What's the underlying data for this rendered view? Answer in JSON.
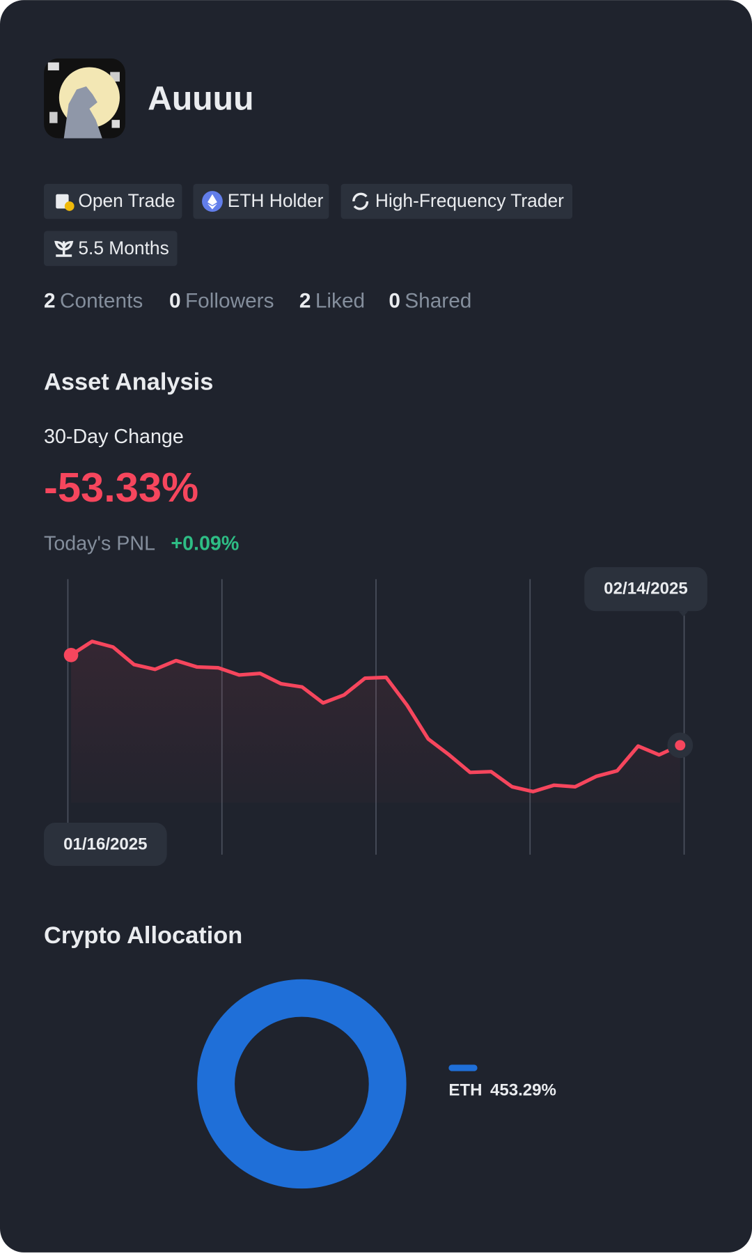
{
  "profile": {
    "name": "Auuuu",
    "badges": [
      "Open Trade",
      "ETH Holder",
      "High-Frequency Trader",
      "5.5 Months"
    ],
    "stats": [
      {
        "value": 2,
        "label": "Contents"
      },
      {
        "value": 0,
        "label": "Followers"
      },
      {
        "value": 2,
        "label": "Liked"
      },
      {
        "value": 0,
        "label": "Shared"
      }
    ]
  },
  "asset_analysis": {
    "title": "Asset Analysis",
    "change_label": "30-Day Change",
    "change": "-53.33%",
    "pnl_label": "Today's PNL",
    "pnl": "+0.09%",
    "chart": {
      "type": "line",
      "color": "#f6465d",
      "start_date": "01/16/2025",
      "end_date": "02/14/2025",
      "values": [
        180,
        197,
        190,
        168,
        162,
        173,
        165,
        164,
        155,
        157,
        144,
        140,
        120,
        130,
        151,
        152,
        117,
        75,
        55,
        33,
        34,
        15,
        9,
        17,
        15,
        28,
        35,
        66,
        55,
        67
      ]
    }
  },
  "crypto_allocation": {
    "title": "Crypto Allocation",
    "chart": {
      "type": "pie",
      "categories": [
        "ETH"
      ],
      "values": [
        453.29
      ],
      "value_labels": [
        "453.29%"
      ],
      "colors": [
        "#1f6fd8"
      ]
    }
  }
}
